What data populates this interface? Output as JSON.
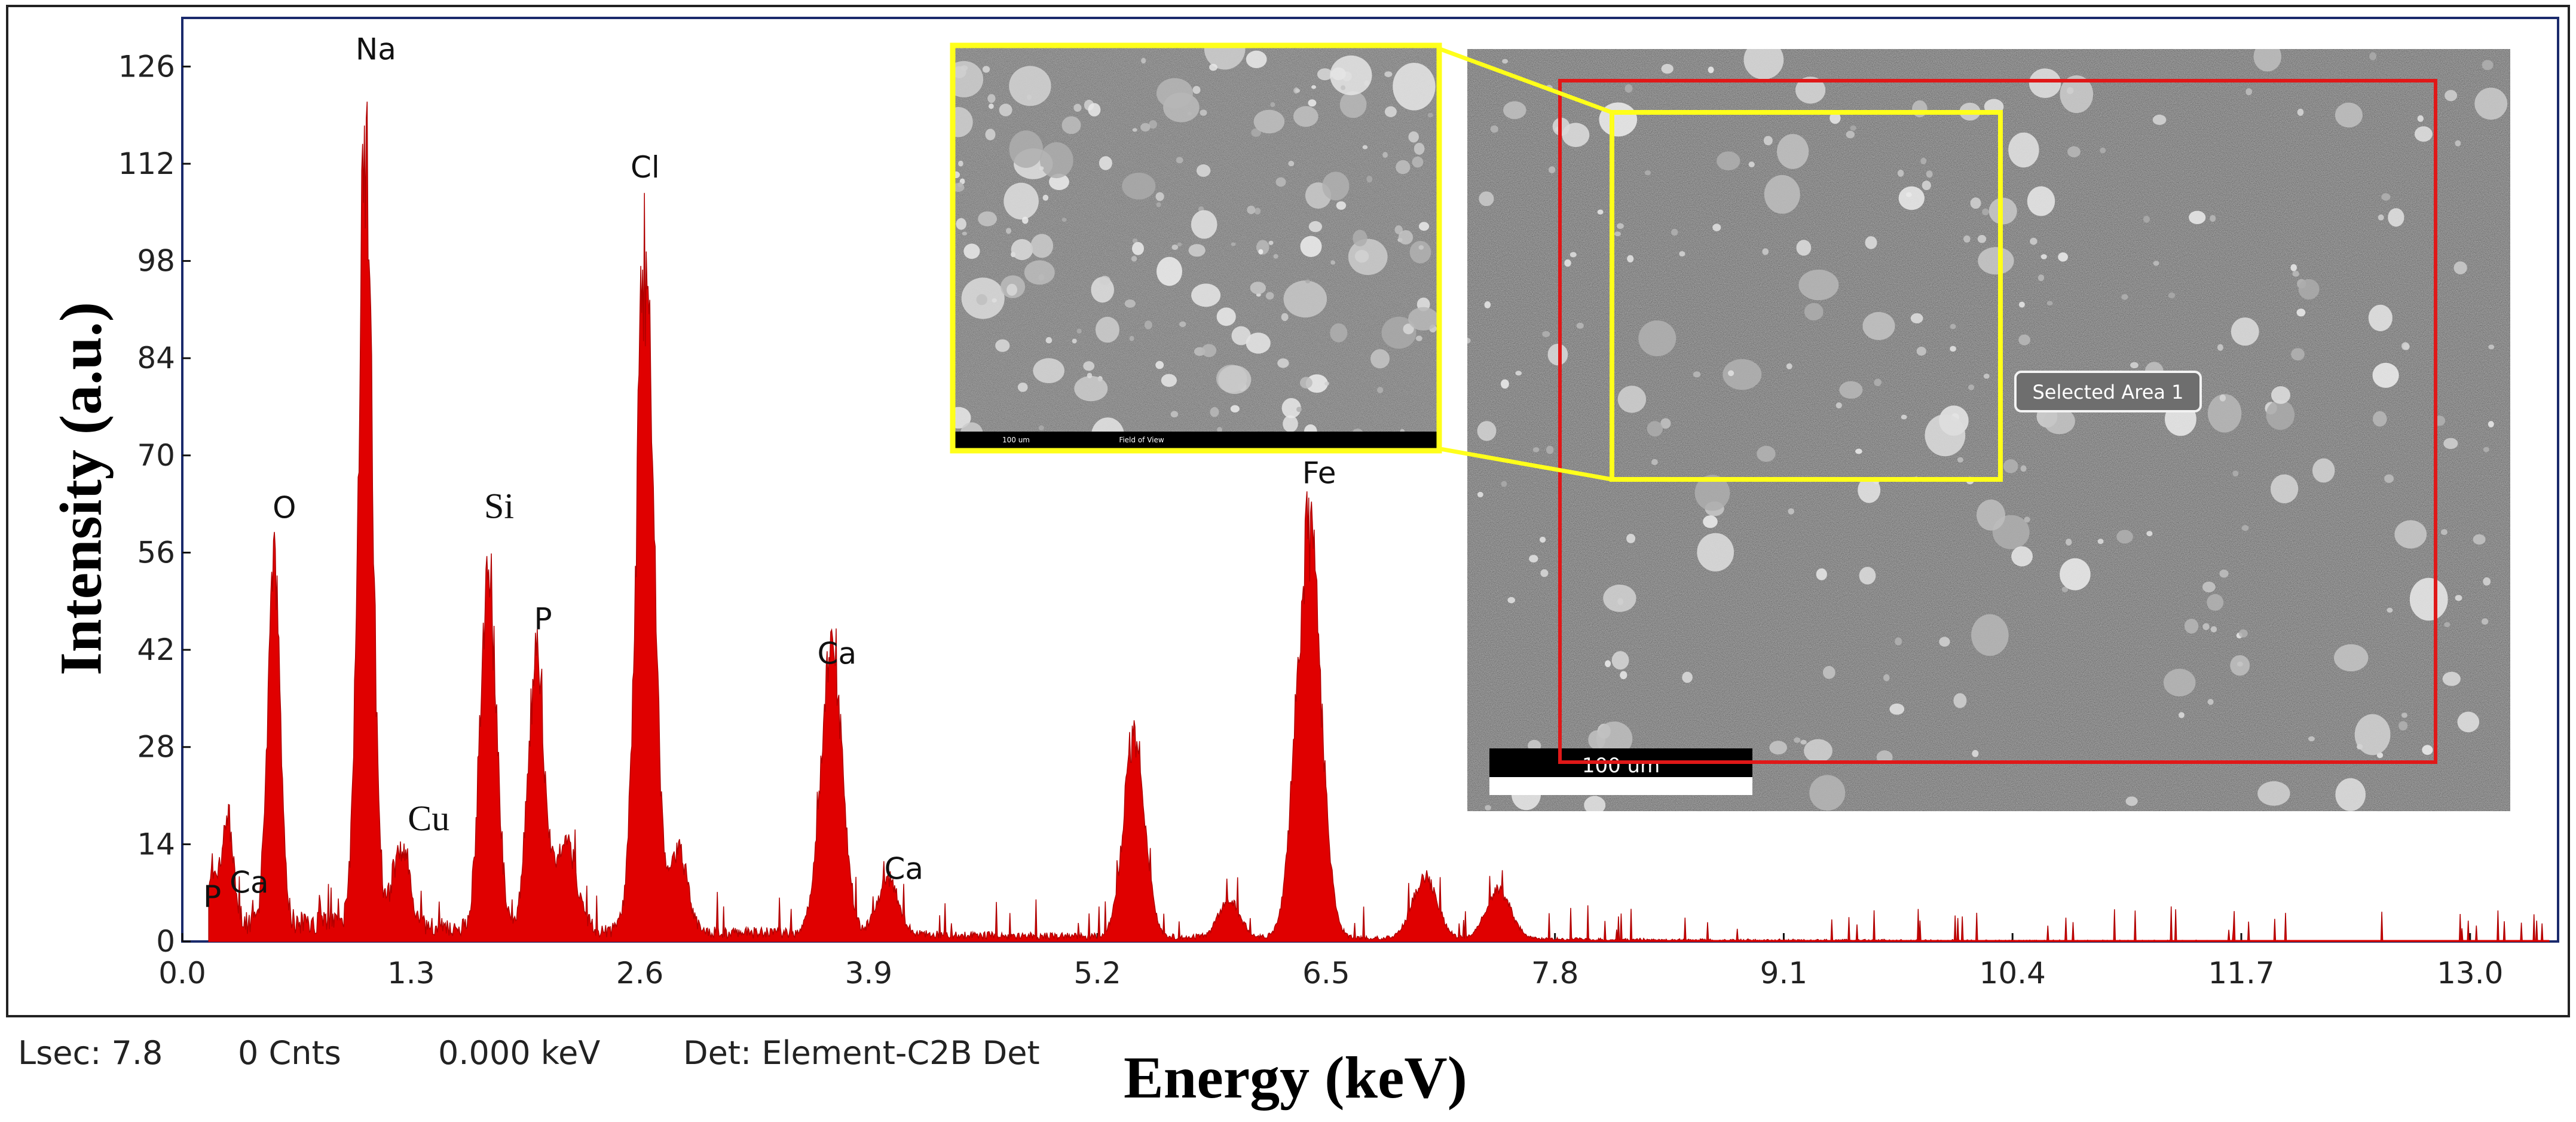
{
  "chart_data": {
    "type": "line",
    "xlabel": "Energy (keV)",
    "ylabel": "Intensity (a.u.)",
    "xlim": [
      0.0,
      13.5
    ],
    "ylim": [
      0,
      133
    ],
    "x_ticks": [
      "0.0",
      "1.3",
      "2.6",
      "3.9",
      "5.2",
      "6.5",
      "7.8",
      "9.1",
      "10.4",
      "11.7",
      "13.0"
    ],
    "y_ticks": [
      "0",
      "14",
      "28",
      "42",
      "56",
      "70",
      "84",
      "98",
      "112",
      "126"
    ],
    "series_color": "#e00000",
    "background_level": 3,
    "peaks": [
      {
        "x": 0.18,
        "y": 8,
        "width": 0.03
      },
      {
        "x": 0.26,
        "y": 16,
        "width": 0.03
      },
      {
        "x": 0.52,
        "y": 60,
        "width": 0.035
      },
      {
        "x": 1.04,
        "y": 125,
        "width": 0.04
      },
      {
        "x": 1.24,
        "y": 12,
        "width": 0.05
      },
      {
        "x": 1.74,
        "y": 57,
        "width": 0.045
      },
      {
        "x": 2.01,
        "y": 44,
        "width": 0.045
      },
      {
        "x": 2.18,
        "y": 14,
        "width": 0.06
      },
      {
        "x": 2.63,
        "y": 108,
        "width": 0.05
      },
      {
        "x": 2.82,
        "y": 14,
        "width": 0.05
      },
      {
        "x": 3.69,
        "y": 47,
        "width": 0.06
      },
      {
        "x": 4.01,
        "y": 9,
        "width": 0.06
      },
      {
        "x": 5.41,
        "y": 33,
        "width": 0.06
      },
      {
        "x": 5.95,
        "y": 6,
        "width": 0.06
      },
      {
        "x": 6.4,
        "y": 65,
        "width": 0.07
      },
      {
        "x": 7.06,
        "y": 10,
        "width": 0.07
      },
      {
        "x": 7.48,
        "y": 8,
        "width": 0.07
      }
    ],
    "peak_labels": [
      {
        "text": "P",
        "x": 0.17,
        "y": 5,
        "font": "sans"
      },
      {
        "text": "Ca",
        "x": 0.38,
        "y": 7,
        "font": "sans"
      },
      {
        "text": "O",
        "x": 0.58,
        "y": 61,
        "font": "sans"
      },
      {
        "text": "Na",
        "x": 1.1,
        "y": 127,
        "font": "sans"
      },
      {
        "text": "Cu",
        "x": 1.4,
        "y": 16,
        "font": "serif"
      },
      {
        "text": "Si",
        "x": 1.8,
        "y": 61,
        "font": "serif"
      },
      {
        "text": "P",
        "x": 2.05,
        "y": 45,
        "font": "sans"
      },
      {
        "text": "Cl",
        "x": 2.63,
        "y": 110,
        "font": "sans"
      },
      {
        "text": "Ca",
        "x": 3.72,
        "y": 40,
        "font": "sans"
      },
      {
        "text": "Ca",
        "x": 4.1,
        "y": 9,
        "font": "sans"
      },
      {
        "text": "Fe",
        "x": 6.46,
        "y": 66,
        "font": "sans"
      }
    ],
    "inset": {
      "scale_bar": "100 um",
      "selection_label": "Selected Area 1",
      "selection_color": "#e01818",
      "zoom_color": "#ffff1a",
      "zoom_scale_text": "100 um",
      "zoom_footer_text": "Field of View"
    }
  },
  "status_bar": {
    "lsec": "Lsec: 7.8",
    "counts": "0 Cnts",
    "energy": "0.000 keV",
    "detector": "Det: Element-C2B Det"
  }
}
